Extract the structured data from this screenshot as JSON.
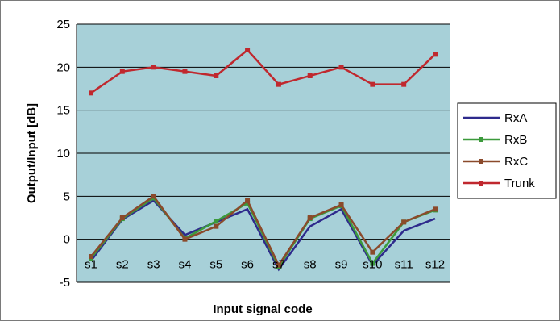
{
  "chart_data": {
    "type": "line",
    "categories": [
      "s1",
      "s2",
      "s3",
      "s4",
      "s5",
      "s6",
      "s7",
      "s8",
      "s9",
      "s10",
      "s11",
      "s12"
    ],
    "series": [
      {
        "name": "RxA",
        "color": "#2e2a8c",
        "marker": "none",
        "values": [
          -2.5,
          2.3,
          4.5,
          0.5,
          2.0,
          3.5,
          -3.5,
          1.5,
          3.5,
          -3.0,
          1.0,
          2.4
        ]
      },
      {
        "name": "RxB",
        "color": "#3c9a3c",
        "marker": "square",
        "values": [
          -2.2,
          2.4,
          4.8,
          0.1,
          2.1,
          4.2,
          -3.2,
          2.4,
          3.9,
          -2.8,
          2.0,
          3.4
        ]
      },
      {
        "name": "RxC",
        "color": "#8b4a2b",
        "marker": "square",
        "values": [
          -2.0,
          2.5,
          5.0,
          0.0,
          1.5,
          4.5,
          -3.0,
          2.5,
          4.0,
          -1.5,
          2.0,
          3.5
        ]
      },
      {
        "name": "Trunk",
        "color": "#c0282e",
        "marker": "square",
        "values": [
          17.0,
          19.5,
          20.0,
          19.5,
          19.0,
          22.0,
          18.0,
          19.0,
          20.0,
          18.0,
          18.0,
          21.5
        ]
      }
    ],
    "xlabel": "Input signal code",
    "ylabel": "Output/Input [dB]",
    "ylim": [
      -5,
      25
    ],
    "yticks": [
      "25",
      "20",
      "15",
      "10",
      "5",
      "0",
      "-5"
    ],
    "grid": true,
    "legend_position": "right",
    "plot_background": "#a7d0d8"
  }
}
